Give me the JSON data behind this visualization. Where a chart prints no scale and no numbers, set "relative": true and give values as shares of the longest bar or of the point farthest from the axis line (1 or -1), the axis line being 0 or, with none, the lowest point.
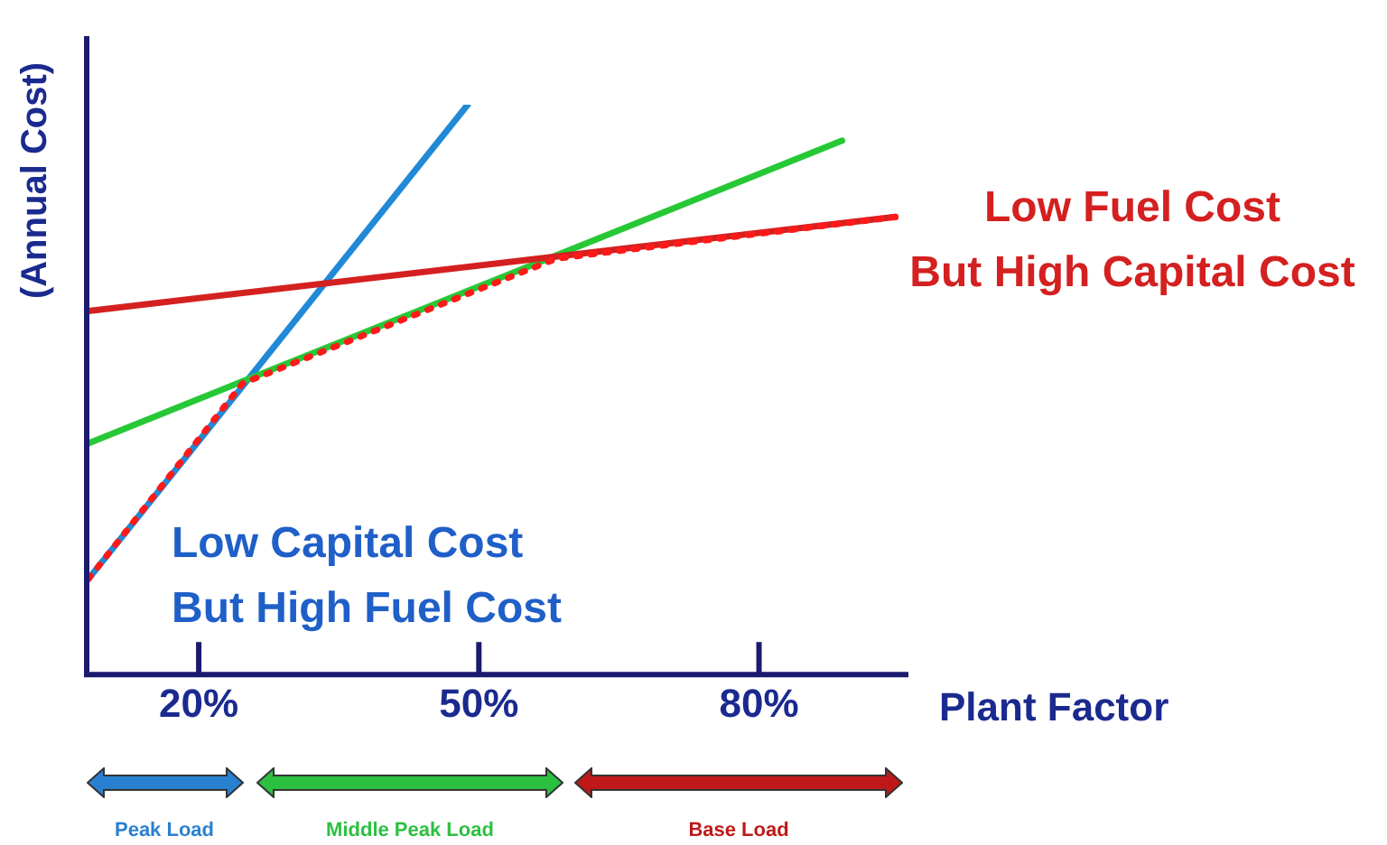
{
  "chart_data": {
    "type": "line",
    "relative": true,
    "ylabel": "(Annual Cost)",
    "xlabel": "Plant Factor",
    "xlim": [
      8,
      96
    ],
    "xticks": [
      {
        "value": 20,
        "label": "20%"
      },
      {
        "value": 50,
        "label": "50%"
      },
      {
        "value": 80,
        "label": "80%"
      }
    ],
    "series": [
      {
        "color": "#1f8ad6",
        "x": [
          8.2,
          48.8
        ],
        "values": [
          0.168,
          1
        ]
      },
      {
        "color": "#27c836",
        "x": [
          8.2,
          88.9
        ],
        "values": [
          0.406,
          0.937
        ]
      },
      {
        "color": "#d42020",
        "x": [
          8.2,
          94.6
        ],
        "values": [
          0.638,
          0.803
        ]
      },
      {
        "color": "#ff1a1a",
        "line_style": "dotted",
        "x": [
          8.2,
          24.7,
          58.3,
          94.6
        ],
        "values": [
          0.168,
          0.511,
          0.73,
          0.803
        ]
      }
    ],
    "annotations": [
      "Low Fuel Cost\nBut High Capital Cost",
      "Low Capital Cost\nBut High Fuel Cost",
      "Peak Load",
      "Middle Peak Load",
      "Base Load"
    ],
    "grid": false,
    "legend": false,
    "marker": "none"
  }
}
